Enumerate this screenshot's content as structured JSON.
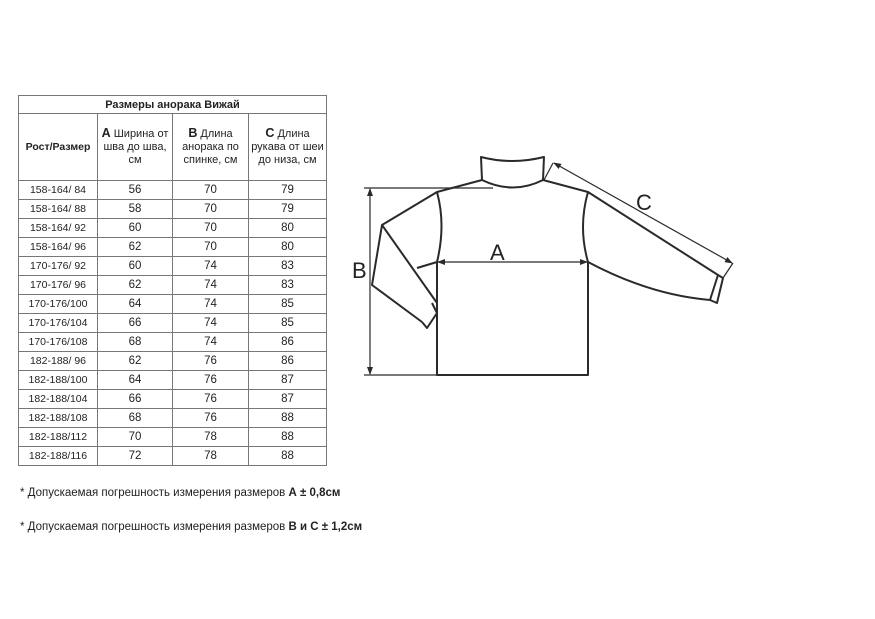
{
  "table": {
    "title": "Размеры анорака Вижай",
    "headers": [
      {
        "letter": "",
        "text": "Рост/Размер"
      },
      {
        "letter": "А",
        "text": " Ширина от шва до шва, см"
      },
      {
        "letter": "В",
        "text": " Длина анорака по спинке, см"
      },
      {
        "letter": "С",
        "text": " Длина рукава от шеи до низа, см"
      }
    ],
    "rows": [
      [
        "158-164/ 84",
        "56",
        "70",
        "79"
      ],
      [
        "158-164/ 88",
        "58",
        "70",
        "79"
      ],
      [
        "158-164/ 92",
        "60",
        "70",
        "80"
      ],
      [
        "158-164/ 96",
        "62",
        "70",
        "80"
      ],
      [
        "170-176/ 92",
        "60",
        "74",
        "83"
      ],
      [
        "170-176/ 96",
        "62",
        "74",
        "83"
      ],
      [
        "170-176/100",
        "64",
        "74",
        "85"
      ],
      [
        "170-176/104",
        "66",
        "74",
        "85"
      ],
      [
        "170-176/108",
        "68",
        "74",
        "86"
      ],
      [
        "182-188/ 96",
        "62",
        "76",
        "86"
      ],
      [
        "182-188/100",
        "64",
        "76",
        "87"
      ],
      [
        "182-188/104",
        "66",
        "76",
        "87"
      ],
      [
        "182-188/108",
        "68",
        "76",
        "88"
      ],
      [
        "182-188/112",
        "70",
        "78",
        "88"
      ],
      [
        "182-188/116",
        "72",
        "78",
        "88"
      ]
    ]
  },
  "notes": [
    {
      "text": "* Допускаемая погрешность измерения размеров ",
      "bold": "А ± 0,8см"
    },
    {
      "text": "* Допускаемая погрешность измерения размеров ",
      "bold": "В и С ± 1,2см"
    }
  ],
  "diagram": {
    "label_a": "A",
    "label_b": "B",
    "label_c": "C",
    "line_color": "#2a2a2a"
  }
}
